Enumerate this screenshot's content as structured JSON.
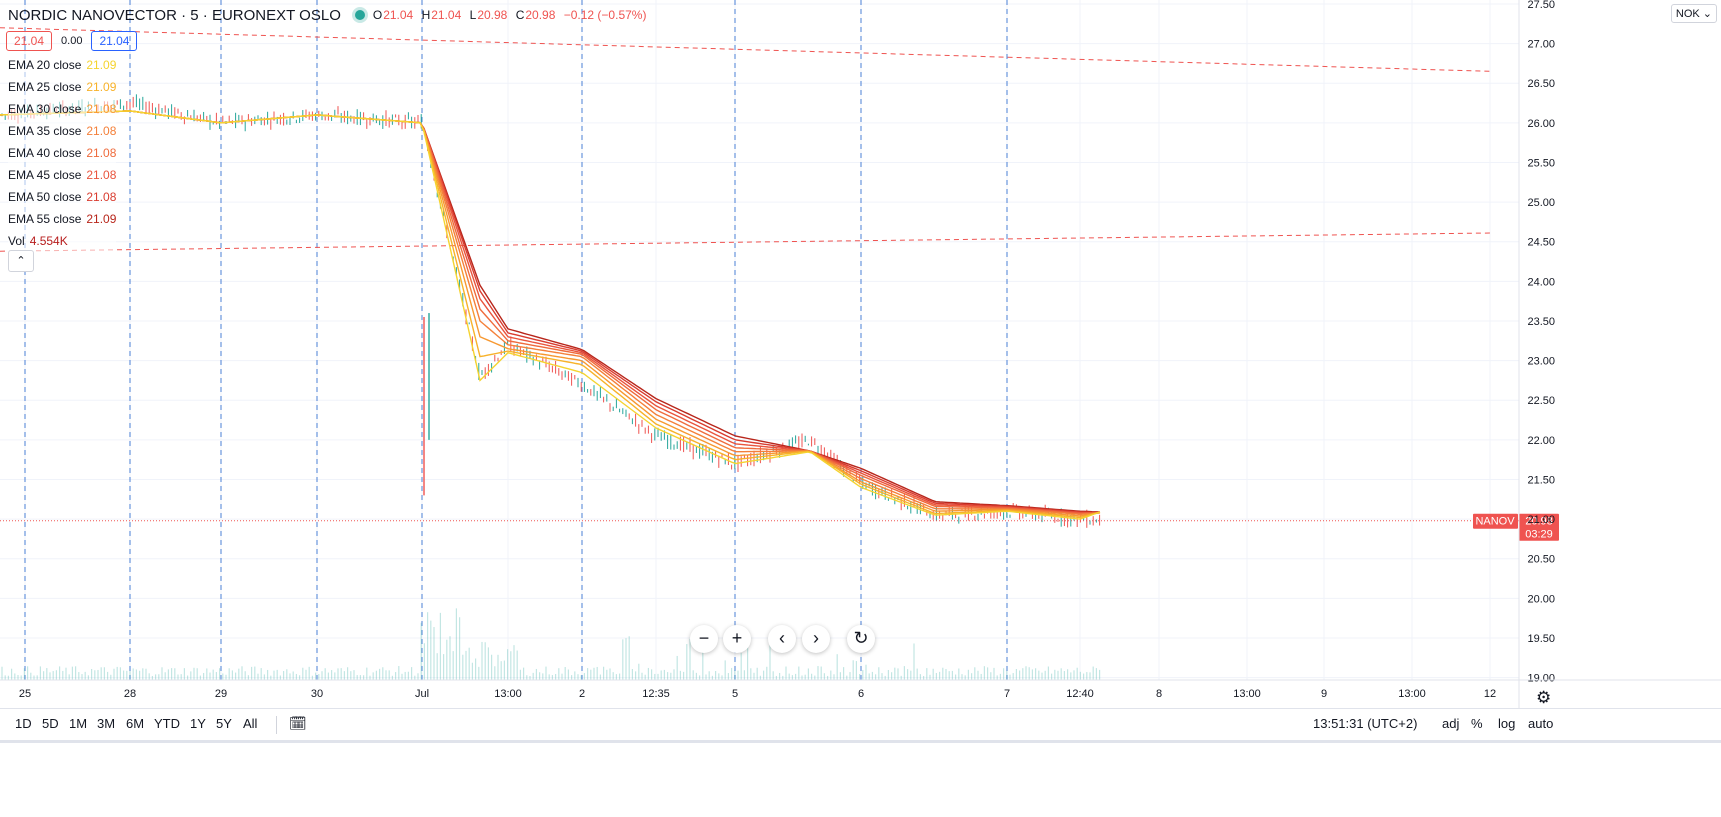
{
  "header": {
    "symbol": "NORDIC NANOVECTOR",
    "sep1": "·",
    "interval": "5",
    "sep2": "·",
    "exchange": "EURONEXT OSLO",
    "ohlc": {
      "o_label": "O",
      "o": "21.04",
      "h_label": "H",
      "h": "21.04",
      "l_label": "L",
      "l": "20.98",
      "c_label": "C",
      "c": "20.98",
      "change": "−0.12 (−0.57%)"
    }
  },
  "quote": {
    "sell": "21.04",
    "spread": "0.00",
    "buy": "21.04"
  },
  "legend": [
    {
      "label": "EMA 20 close",
      "value": "21.09",
      "color": "#f5d32f"
    },
    {
      "label": "EMA 25 close",
      "value": "21.09",
      "color": "#f7b22a"
    },
    {
      "label": "EMA 30 close",
      "value": "21.08",
      "color": "#f79830"
    },
    {
      "label": "EMA 35 close",
      "value": "21.08",
      "color": "#f4803a"
    },
    {
      "label": "EMA 40 close",
      "value": "21.08",
      "color": "#ef6b3c"
    },
    {
      "label": "EMA 45 close",
      "value": "21.08",
      "color": "#e9543d"
    },
    {
      "label": "EMA 50 close",
      "value": "21.08",
      "color": "#d93c2f"
    },
    {
      "label": "EMA 55 close",
      "value": "21.09",
      "color": "#b8261b"
    }
  ],
  "volume": {
    "label": "Vol",
    "value": "4.554K",
    "color": "#b71c1c"
  },
  "currency_menu": "NOK",
  "collapse_icon": "chevron-up-icon",
  "nav_buttons": [
    {
      "name": "zoom-out-button",
      "glyph": "−"
    },
    {
      "name": "zoom-in-button",
      "glyph": "+"
    },
    {
      "name": "scroll-left-button",
      "glyph": "‹"
    },
    {
      "name": "scroll-right-button",
      "glyph": "›"
    },
    {
      "name": "reset-chart-button",
      "glyph": "↻"
    }
  ],
  "ranges": [
    "1D",
    "5D",
    "1M",
    "3M",
    "6M",
    "YTD",
    "1Y",
    "5Y",
    "All"
  ],
  "clock": "13:51:31 (UTC+2)",
  "scale_options": [
    "adj",
    "%",
    "log",
    "auto"
  ],
  "colors": {
    "up": "#26a69a",
    "down": "#ef5350",
    "grid": "#f0f3fa",
    "session": "#4a7fd6",
    "trend": "#ef5350",
    "price_line": "#ef5350"
  },
  "chart_data": {
    "type": "line",
    "title": "NORDIC NANOVECTOR · 5 · EURONEXT OSLO",
    "y_axis": {
      "ticks": [
        19.0,
        19.5,
        20.0,
        20.5,
        21.0,
        21.5,
        22.0,
        22.5,
        23.0,
        23.5,
        24.0,
        24.5,
        25.0,
        25.5,
        26.0,
        26.5,
        27.0,
        27.5
      ],
      "min": 18.97,
      "max": 27.55
    },
    "x_axis": {
      "ticks": [
        "25",
        "28",
        "29",
        "30",
        "Jul",
        "13:00",
        "2",
        "12:35",
        "5",
        "6",
        "7",
        "12:40",
        "8",
        "13:00",
        "9",
        "13:00",
        "12"
      ]
    },
    "price_tag": {
      "symbol": "NANOV",
      "price": "20.98",
      "countdown": "03:29",
      "value": 20.98
    },
    "trend_lines": [
      {
        "from": {
          "x": "25",
          "y": 27.2
        },
        "to": {
          "x": "12",
          "y": 26.65
        }
      },
      {
        "from": {
          "x": "25",
          "y": 24.38
        },
        "to": {
          "x": "12",
          "y": 24.61
        }
      }
    ],
    "close_path": {
      "x": [
        "25",
        "28",
        "29",
        "30",
        "Jul",
        "Jul 10:30",
        "13:00",
        "2",
        "12:35",
        "5",
        "5 14:00",
        "6",
        "6 12:00",
        "7",
        "12:40",
        "12:40 end"
      ],
      "y": [
        26.1,
        26.25,
        26.0,
        26.1,
        26.0,
        22.8,
        23.2,
        22.7,
        22.05,
        21.7,
        22.0,
        21.45,
        21.05,
        21.1,
        21.0,
        20.98
      ]
    },
    "series": [
      {
        "name": "EMA 20 close",
        "y": [
          26.1,
          26.15,
          26.0,
          26.1,
          26.0,
          22.75,
          23.1,
          22.85,
          22.15,
          21.7,
          21.85,
          21.4,
          21.05,
          21.1,
          21.0,
          21.09
        ]
      },
      {
        "name": "EMA 25 close",
        "y": [
          26.1,
          26.15,
          26.0,
          26.1,
          26.0,
          23.05,
          23.12,
          22.95,
          22.2,
          21.75,
          21.86,
          21.44,
          21.07,
          21.11,
          21.02,
          21.09
        ]
      },
      {
        "name": "EMA 30 close",
        "y": [
          26.1,
          26.15,
          26.0,
          26.1,
          26.0,
          23.3,
          23.15,
          23.0,
          22.26,
          21.8,
          21.86,
          21.47,
          21.1,
          21.12,
          21.04,
          21.08
        ]
      },
      {
        "name": "EMA 35 close",
        "y": [
          26.1,
          26.15,
          26.0,
          26.1,
          26.0,
          23.5,
          23.2,
          23.05,
          22.32,
          21.85,
          21.86,
          21.51,
          21.13,
          21.13,
          21.06,
          21.08
        ]
      },
      {
        "name": "EMA 40 close",
        "y": [
          26.1,
          26.15,
          26.0,
          26.1,
          26.0,
          23.65,
          23.25,
          23.08,
          22.38,
          21.9,
          21.86,
          21.55,
          21.16,
          21.14,
          21.07,
          21.08
        ]
      },
      {
        "name": "EMA 45 close",
        "y": [
          26.1,
          26.15,
          26.0,
          26.1,
          26.0,
          23.78,
          23.3,
          23.1,
          22.43,
          21.95,
          21.86,
          21.58,
          21.18,
          21.15,
          21.08,
          21.08
        ]
      },
      {
        "name": "EMA 50 close",
        "y": [
          26.1,
          26.15,
          26.0,
          26.1,
          26.0,
          23.88,
          23.35,
          23.12,
          22.48,
          22.0,
          21.86,
          21.61,
          21.2,
          21.16,
          21.09,
          21.08
        ]
      },
      {
        "name": "EMA 55 close",
        "y": [
          26.1,
          26.15,
          26.0,
          26.1,
          26.0,
          23.95,
          23.4,
          23.14,
          22.52,
          22.05,
          21.86,
          21.64,
          21.22,
          21.17,
          21.1,
          21.09
        ]
      }
    ],
    "volume": {
      "unit": "K",
      "last": 4.554
    }
  }
}
